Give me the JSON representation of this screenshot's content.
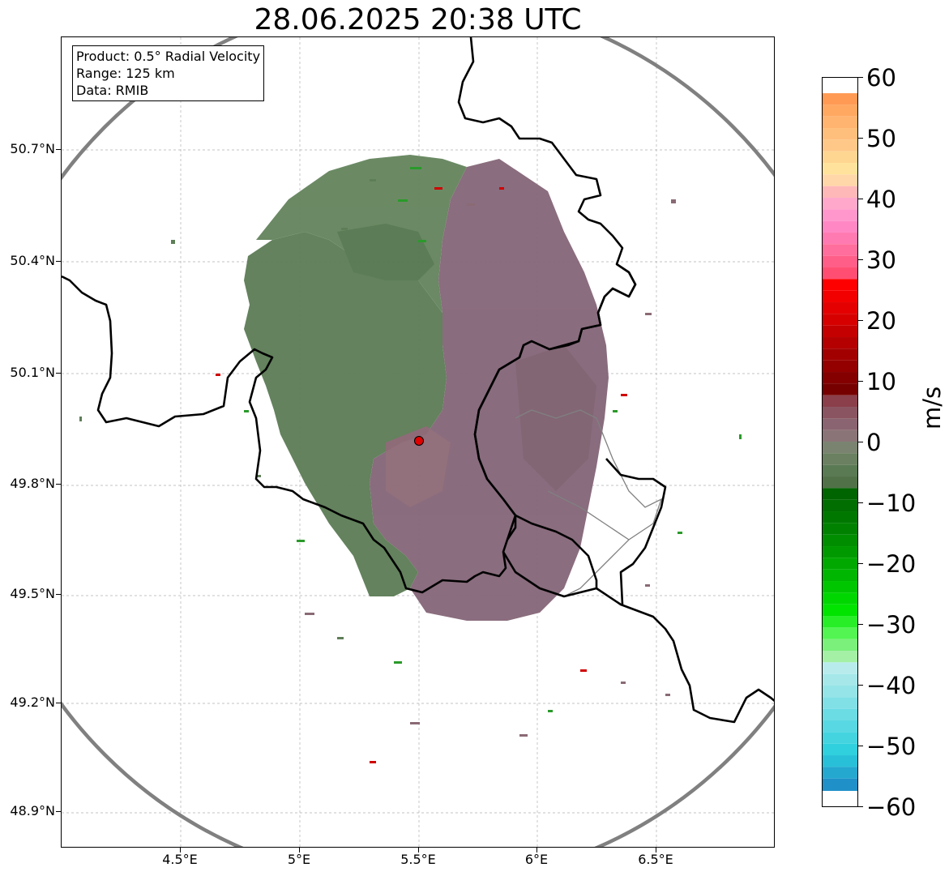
{
  "title": "28.06.2025 20:38 UTC",
  "info": {
    "product": "Product: 0.5° Radial Velocity",
    "range": "Range: 125 km",
    "data": "Data: RMIB"
  },
  "axes": {
    "lat_labels": [
      "50.7°N",
      "50.4°N",
      "50.1°N",
      "49.8°N",
      "49.5°N",
      "49.2°N",
      "48.9°N"
    ],
    "lon_labels": [
      "4.5°E",
      "5°E",
      "5.5°E",
      "6°E",
      "6.5°E"
    ]
  },
  "colorbar": {
    "unit": "m/s",
    "ticks": [
      "60",
      "50",
      "40",
      "30",
      "20",
      "10",
      "0",
      "−10",
      "−20",
      "−30",
      "−40",
      "−50",
      "−60"
    ],
    "range": [
      -60,
      60
    ]
  },
  "radar_site": {
    "lon": 5.5,
    "lat": 49.914
  },
  "colors": {
    "approaching": "#5e7e58",
    "receding": "#8a6a74",
    "border": "#000000",
    "range_ring": "#808080",
    "site_marker": "#e00000"
  }
}
